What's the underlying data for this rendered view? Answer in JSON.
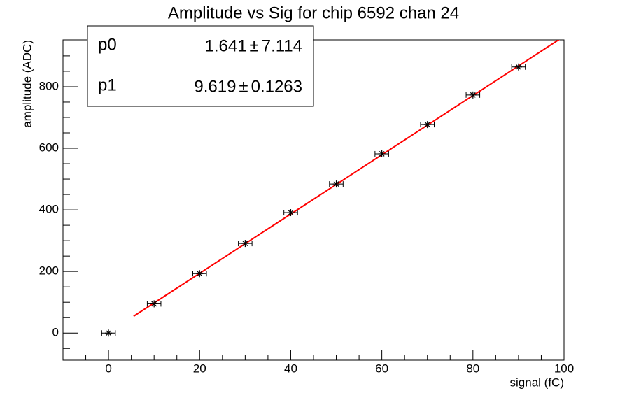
{
  "chart_data": {
    "type": "scatter",
    "title": "Amplitude vs Sig for chip 6592 chan 24",
    "x_label": "signal (fC)",
    "y_label": "amplitude (ADC)",
    "x": [
      0,
      10,
      20,
      30,
      40,
      50,
      60,
      70,
      80,
      90
    ],
    "series": [
      {
        "name": "data",
        "color": "#000000",
        "values": [
          0,
          95,
          193,
          291,
          391,
          484,
          582,
          677,
          773,
          864
        ],
        "xerr": [
          1.5,
          1.5,
          1.5,
          1.5,
          1.5,
          1.5,
          1.5,
          1.5,
          1.5,
          1.5
        ]
      }
    ],
    "fit": {
      "color": "#ff0000",
      "xrange": [
        5.5,
        100
      ],
      "params": [
        {
          "name": "p0",
          "value": 1.641,
          "error": 7.114
        },
        {
          "name": "p1",
          "value": 9.619,
          "error": 0.1263
        }
      ],
      "separator": "±"
    },
    "xlim": [
      -10,
      100
    ],
    "ylim": [
      -88,
      952
    ],
    "xticks": [
      0,
      20,
      40,
      60,
      80,
      100
    ],
    "yticks": [
      0,
      200,
      400,
      600,
      800
    ],
    "xminorticks": [
      -10,
      -5,
      5,
      10,
      15,
      25,
      30,
      35,
      45,
      50,
      55,
      65,
      70,
      75,
      85,
      90,
      95
    ],
    "yminorticks": [
      -50,
      50,
      100,
      150,
      250,
      300,
      350,
      450,
      500,
      550,
      650,
      700,
      750,
      850,
      900
    ],
    "grid": false
  }
}
